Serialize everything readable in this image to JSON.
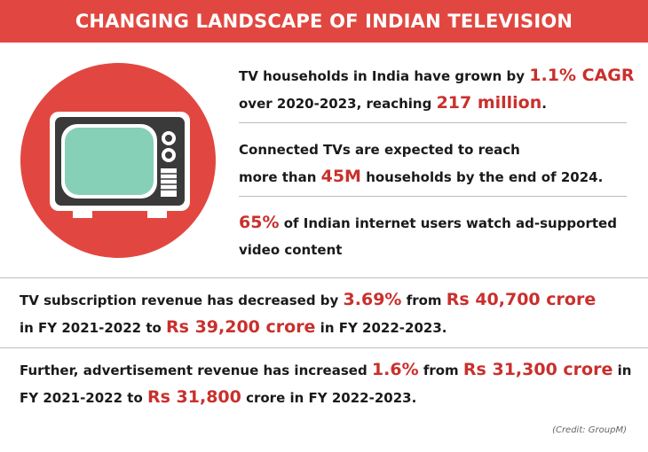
{
  "banner": {
    "title": "CHANGING LANDSCAPE OF INDIAN TELEVISION"
  },
  "facts": [
    {
      "line1": {
        "pre": "TV households in India have grown by ",
        "highlight": "1.1% CAGR"
      },
      "line2": {
        "pre": "over 2020-2023, reaching ",
        "highlight": "217 million",
        "post": "."
      }
    },
    {
      "line1": {
        "pre": "Connected TVs are expected to reach"
      },
      "line2": {
        "pre": "more than ",
        "highlight": "45M",
        "post": " households by the end of 2024."
      }
    },
    {
      "line1": {
        "highlight": "65%",
        "post": " of Indian internet users watch ad-supported"
      },
      "line2": {
        "pre": "video content"
      }
    }
  ],
  "paragraphs": [
    {
      "line1": {
        "pre": "TV subscription revenue has decreased by ",
        "h1": "3.69%",
        "mid": " from ",
        "h2": "Rs 40,700 crore"
      },
      "line2": {
        "pre": "in FY 2021-2022 to ",
        "h1": "Rs 39,200 crore",
        "post": " in FY 2022-2023."
      }
    },
    {
      "line1": {
        "pre": "Further, advertisement revenue has increased ",
        "h1": "1.6%",
        "mid": " from ",
        "h2": "Rs 31,300 crore",
        "post": " in"
      },
      "line2": {
        "pre": "FY 2021-2022 to ",
        "h1": "Rs 31,800",
        "post": " crore in FY 2022-2023."
      }
    }
  ],
  "credit": "(Credit: GroupM)",
  "colors": {
    "banner": "#e14740",
    "highlight": "#c9302c",
    "circle": "#e14740",
    "screen": "#86d0b8"
  },
  "icons": {
    "illustration": "retro-tv-icon"
  }
}
